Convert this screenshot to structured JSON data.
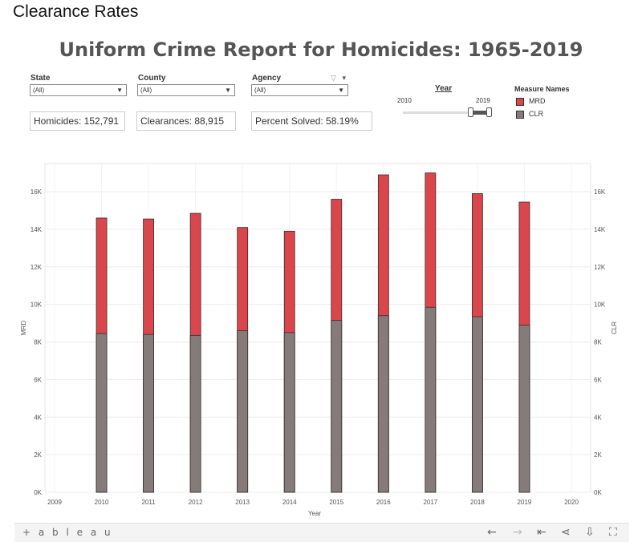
{
  "page_title": "Clearance Rates",
  "dashboard": {
    "title": "Uniform Crime Report for Homicides: 1965-2019",
    "filters": {
      "state": {
        "label": "State",
        "value": "(All)"
      },
      "county": {
        "label": "County",
        "value": "(All)"
      },
      "agency": {
        "label": "Agency",
        "value": "(All)"
      }
    },
    "kpis": {
      "homicides": "Homicides: 152,791",
      "clearances": "Clearances: 88,915",
      "percent_solved": "Percent Solved: 58.19%"
    },
    "year_slider": {
      "label": "Year",
      "min": "2010",
      "max": "2019"
    },
    "legend": {
      "title": "Measure Names",
      "items": [
        {
          "label": "MRD",
          "color": "#d9464b"
        },
        {
          "label": "CLR",
          "color": "#857b7b"
        }
      ]
    }
  },
  "chart_data": {
    "type": "bar",
    "categories": [
      "2010",
      "2011",
      "2012",
      "2013",
      "2014",
      "2015",
      "2016",
      "2017",
      "2018",
      "2019"
    ],
    "x_tick_labels": [
      "2009",
      "2010",
      "2011",
      "2012",
      "2013",
      "2014",
      "2015",
      "2016",
      "2017",
      "2018",
      "2019",
      "2020"
    ],
    "series": [
      {
        "name": "MRD",
        "color": "#d9464b",
        "values": [
          14600,
          14550,
          14850,
          14100,
          13900,
          15600,
          16900,
          17000,
          15900,
          15450
        ]
      },
      {
        "name": "CLR",
        "color": "#857b7b",
        "values": [
          8450,
          8400,
          8350,
          8600,
          8500,
          9150,
          9400,
          9850,
          9350,
          8900
        ]
      }
    ],
    "xlabel": "Year",
    "ylabel": "MRD",
    "y2label": "CLR",
    "ylim": [
      0,
      17500
    ],
    "yticks": [
      "0K",
      "2K",
      "4K",
      "6K",
      "8K",
      "10K",
      "12K",
      "14K",
      "16K"
    ],
    "grid": true
  },
  "footer": {
    "logo": "+ a b l e a u",
    "tools": [
      "back-icon",
      "forward-icon",
      "revert-icon",
      "share-icon",
      "download-icon",
      "fullscreen-icon"
    ]
  }
}
